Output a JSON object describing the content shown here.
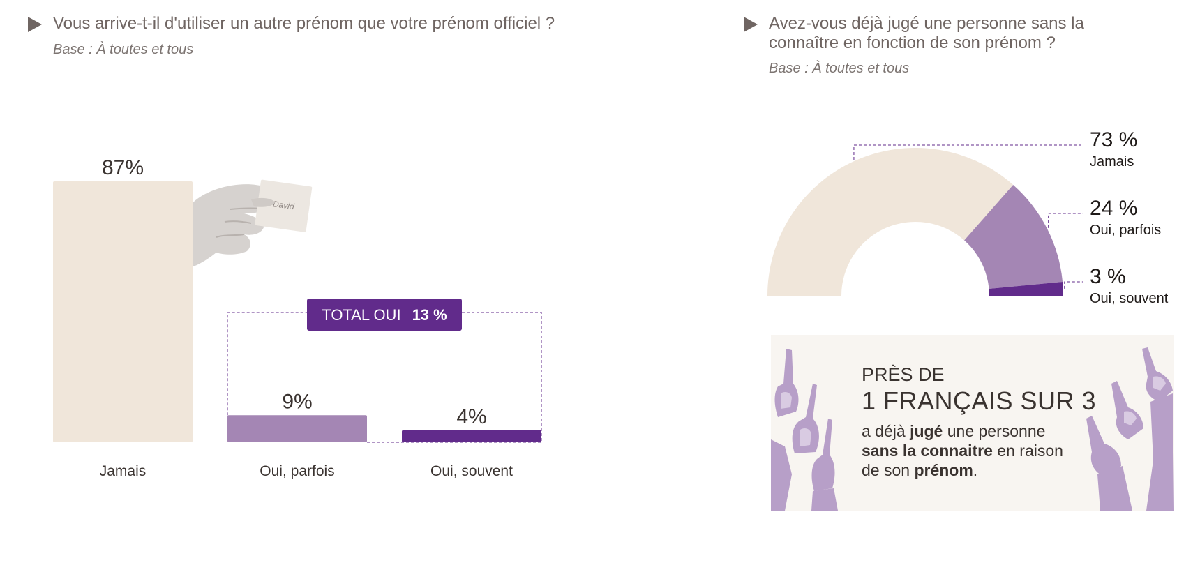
{
  "left_panel": {
    "title": "Vous arrive-t-il d'utiliser un autre prénom que votre prénom officiel ?",
    "base": "Base : À toutes et tous",
    "card_text": "David"
  },
  "right_panel": {
    "title_line1": "Avez-vous déjà jugé une personne sans la",
    "title_line2": "connaître en fonction de son prénom ?",
    "base": "Base : À toutes et tous"
  },
  "callout": {
    "pre": "PRÈS DE",
    "headline": "1 FRANÇAIS SUR 3",
    "body_1": "a déjà ",
    "body_2": "jugé",
    "body_3": " une personne",
    "body_4": "sans la connaitre",
    "body_5": " en raison",
    "body_6": "de son ",
    "body_7": "prénom",
    "body_8": "."
  },
  "colors": {
    "beige": "#f0e6da",
    "light_purple": "#a486b4",
    "dark_purple": "#612b8b",
    "text": "#3a3330",
    "title": "#6f6562"
  },
  "chart_data": [
    {
      "type": "bar",
      "categories": [
        "Jamais",
        "Oui, parfois",
        "Oui, souvent"
      ],
      "values": [
        87,
        9,
        4
      ],
      "value_labels": [
        "87%",
        "9%",
        "4%"
      ],
      "colors": [
        "#f0e6da",
        "#a486b4",
        "#612b8b"
      ],
      "ylim": [
        0,
        87
      ],
      "grid": false,
      "annotation": {
        "label": "TOTAL OUI",
        "value_label": "13 %",
        "groups": [
          "Oui, parfois",
          "Oui, souvent"
        ]
      }
    },
    {
      "type": "pie",
      "style": "half-donut",
      "categories": [
        "Jamais",
        "Oui, parfois",
        "Oui, souvent"
      ],
      "values": [
        73,
        24,
        3
      ],
      "value_labels": [
        "73 %",
        "24 %",
        "3 %"
      ],
      "colors": [
        "#f0e6da",
        "#a486b4",
        "#612b8b"
      ],
      "legend": "right"
    }
  ]
}
